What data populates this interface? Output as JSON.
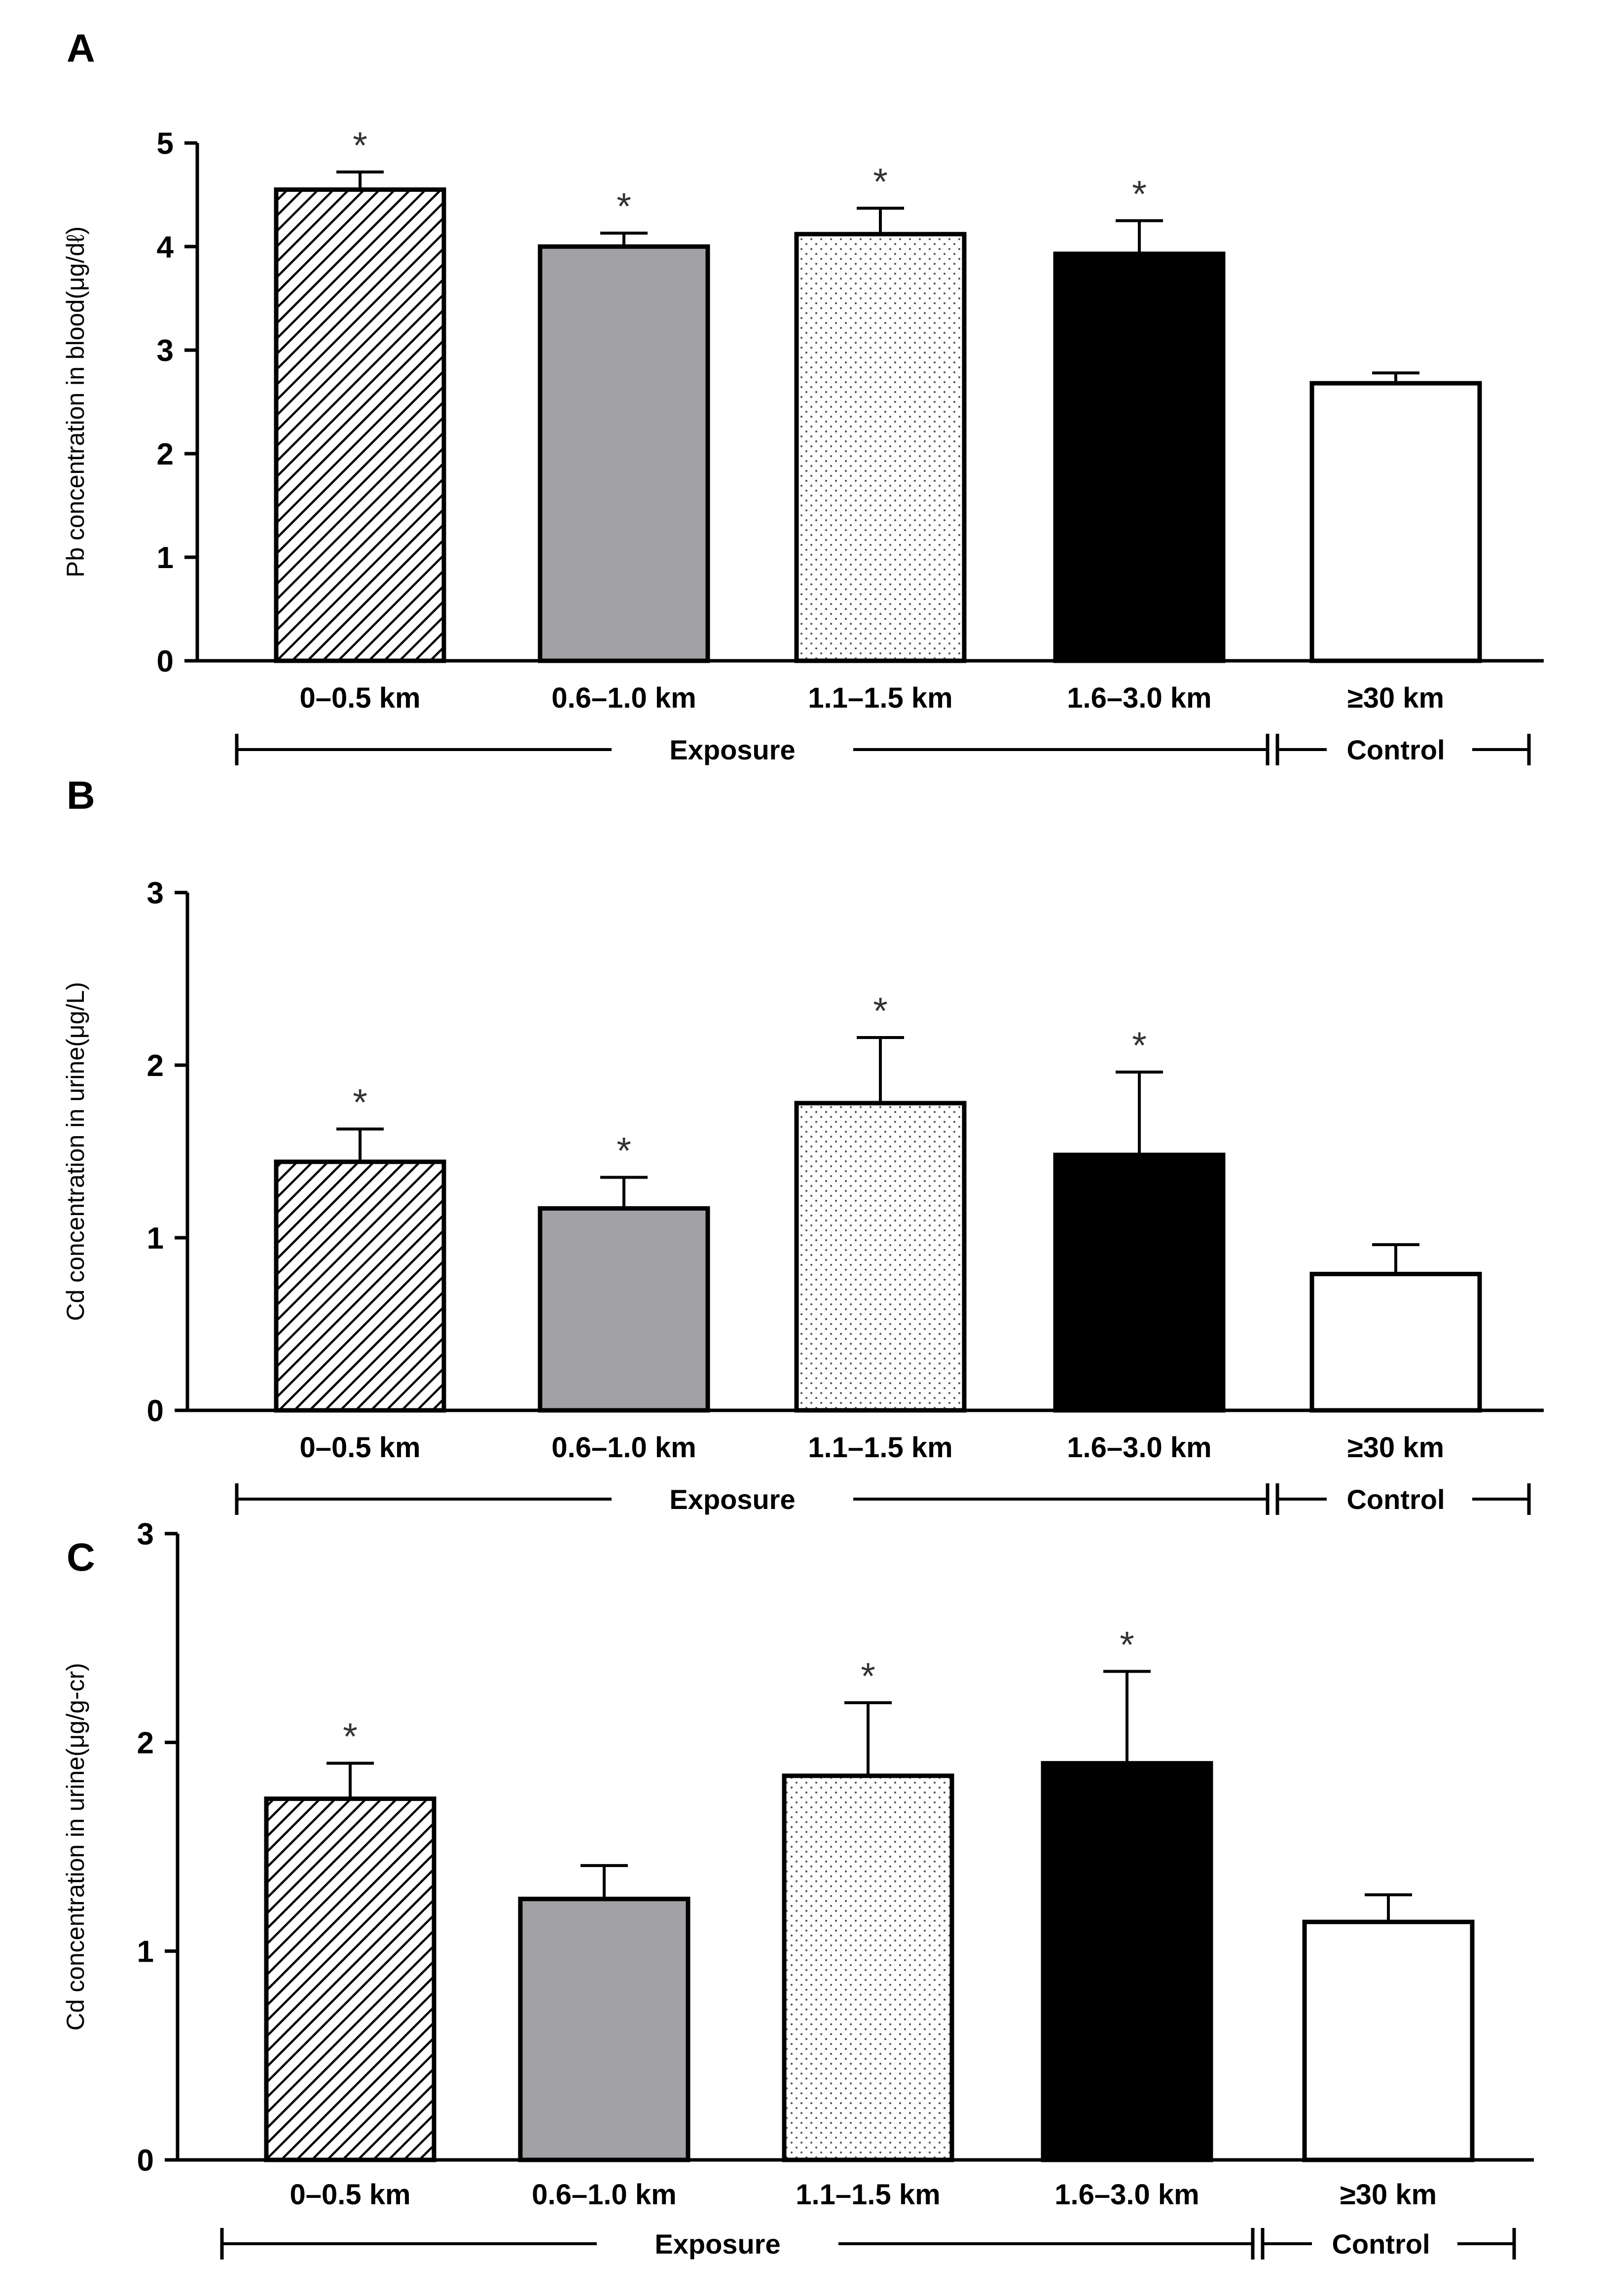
{
  "chart_data": [
    {
      "panel": "A",
      "type": "bar",
      "ylabel": "Pb concentration in blood(μg/dℓ)",
      "ylim": [
        0,
        5
      ],
      "yticks": [
        0,
        1,
        2,
        3,
        4,
        5
      ],
      "categories": [
        "0–0.5 km",
        "0.6–1.0 km",
        "1.1–1.5 km",
        "1.6–3.0 km",
        "≥30 km"
      ],
      "values": [
        4.55,
        4.0,
        4.12,
        3.93,
        2.68
      ],
      "errors": [
        0.17,
        0.13,
        0.25,
        0.32,
        0.1
      ],
      "significant": [
        true,
        true,
        true,
        true,
        false
      ],
      "significance_marker": "*",
      "groups": [
        {
          "label": "Exposure",
          "from": 0,
          "to": 3
        },
        {
          "label": "Control",
          "from": 4,
          "to": 4
        }
      ]
    },
    {
      "panel": "B",
      "type": "bar",
      "ylabel": "Cd concentration in urine(μg/L)",
      "ylim": [
        0,
        3
      ],
      "yticks": [
        0,
        1,
        2,
        3
      ],
      "categories": [
        "0–0.5 km",
        "0.6–1.0 km",
        "1.1–1.5 km",
        "1.6–3.0 km",
        "≥30 km"
      ],
      "values": [
        1.44,
        1.17,
        1.78,
        1.48,
        0.79
      ],
      "errors": [
        0.19,
        0.18,
        0.38,
        0.48,
        0.17
      ],
      "significant": [
        true,
        true,
        true,
        true,
        false
      ],
      "significance_marker": "*",
      "groups": [
        {
          "label": "Exposure",
          "from": 0,
          "to": 3
        },
        {
          "label": "Control",
          "from": 4,
          "to": 4
        }
      ]
    },
    {
      "panel": "C",
      "type": "bar",
      "ylabel": "Cd concentration in urine(μg/g-cr)",
      "ylim": [
        0,
        3
      ],
      "yticks": [
        0,
        1,
        2,
        3
      ],
      "categories": [
        "0–0.5 km",
        "0.6–1.0 km",
        "1.1–1.5 km",
        "1.6–3.0 km",
        "≥30 km"
      ],
      "values": [
        1.73,
        1.25,
        1.84,
        1.9,
        1.14
      ],
      "errors": [
        0.17,
        0.16,
        0.35,
        0.44,
        0.13
      ],
      "significant": [
        true,
        false,
        true,
        true,
        false
      ],
      "significance_marker": "*",
      "groups": [
        {
          "label": "Exposure",
          "from": 0,
          "to": 3
        },
        {
          "label": "Control",
          "from": 4,
          "to": 4
        }
      ]
    }
  ],
  "bar_styles": [
    "diagonal-hatch",
    "gray",
    "dotted",
    "black",
    "white"
  ],
  "colors": {
    "gray": "#a2a2a6",
    "black": "#000000",
    "white": "#ffffff",
    "hatch": "#000000"
  }
}
